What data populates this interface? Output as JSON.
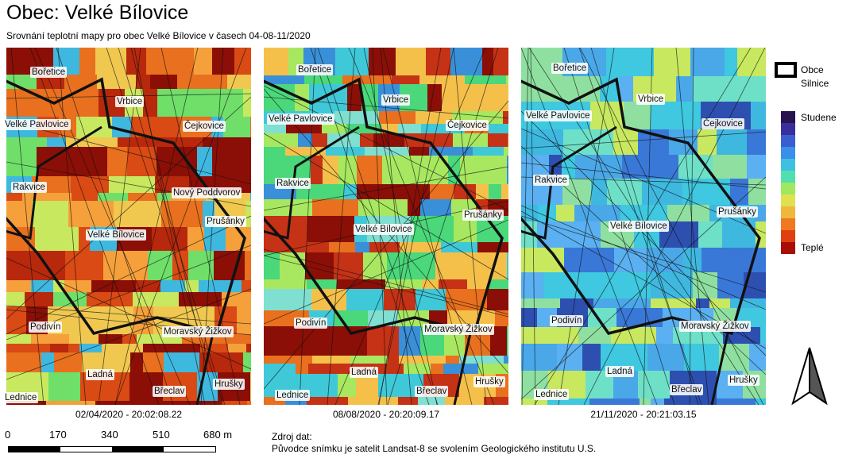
{
  "title": "Obec: Velké Bílovice",
  "subtitle": "Srovnání teplotní mapy pro obec Velké Bílovice v časech 04-08-11/2020",
  "panels": [
    {
      "caption": "02/04/2020 - 20:02:08.22",
      "palette": [
        "#8b0f06",
        "#b8280c",
        "#d94a14",
        "#e8701e",
        "#f5a03a",
        "#f0c850",
        "#c8e860",
        "#6fdf6a",
        "#3fb8e0"
      ]
    },
    {
      "caption": "08/08/2020 - 20:20:09.17",
      "palette": [
        "#8b0f06",
        "#c53216",
        "#e8701e",
        "#f5c04a",
        "#a8e860",
        "#4ad87a",
        "#3fc8d8",
        "#3a90d8",
        "#7fdfd0"
      ]
    },
    {
      "caption": "21/11/2020 - 20:21:03.15",
      "palette": [
        "#4aa8e8",
        "#3a78d8",
        "#3fc8e0",
        "#6fe0c8",
        "#2d50b0",
        "#5ab0f0",
        "#8fe0a0",
        "#c8e860",
        "#3fb8e0"
      ]
    }
  ],
  "places": {
    "borice": "Bořetice",
    "vrbice": "Vrbice",
    "velke_pavlovice": "Velké Pavlovice",
    "cejkovice": "Čejkovice",
    "rakvice": "Rakvice",
    "novy_poddvorov": "Nový Poddvorov",
    "prusanky": "Prušánky",
    "velke_bilovice": "Velké Bílovice",
    "podivin": "Podivín",
    "moravsky_zizkov": "Moravský Žižkov",
    "ladna": "Ladná",
    "breclav": "Břeclav",
    "hrusky": "Hrušky",
    "lednice": "Lednice"
  },
  "legend": {
    "obce": "Obce",
    "silnice": "Silnice",
    "studene": "Studene",
    "teple": "Teplé",
    "ramp_colors": [
      "#2a1450",
      "#3a2f9a",
      "#3a5ed0",
      "#3a8fe8",
      "#3fc0e0",
      "#50e0b0",
      "#9fe860",
      "#e0e050",
      "#f0b83a",
      "#f07820",
      "#e04010",
      "#a80e06"
    ]
  },
  "scale": {
    "labels": [
      "0",
      "170",
      "340",
      "510",
      "680 m"
    ]
  },
  "source": {
    "line1": "Zdroj dat:",
    "line2": "Původce snímku je satelit Landsat-8 se svolením Geologického institutu U.S."
  }
}
